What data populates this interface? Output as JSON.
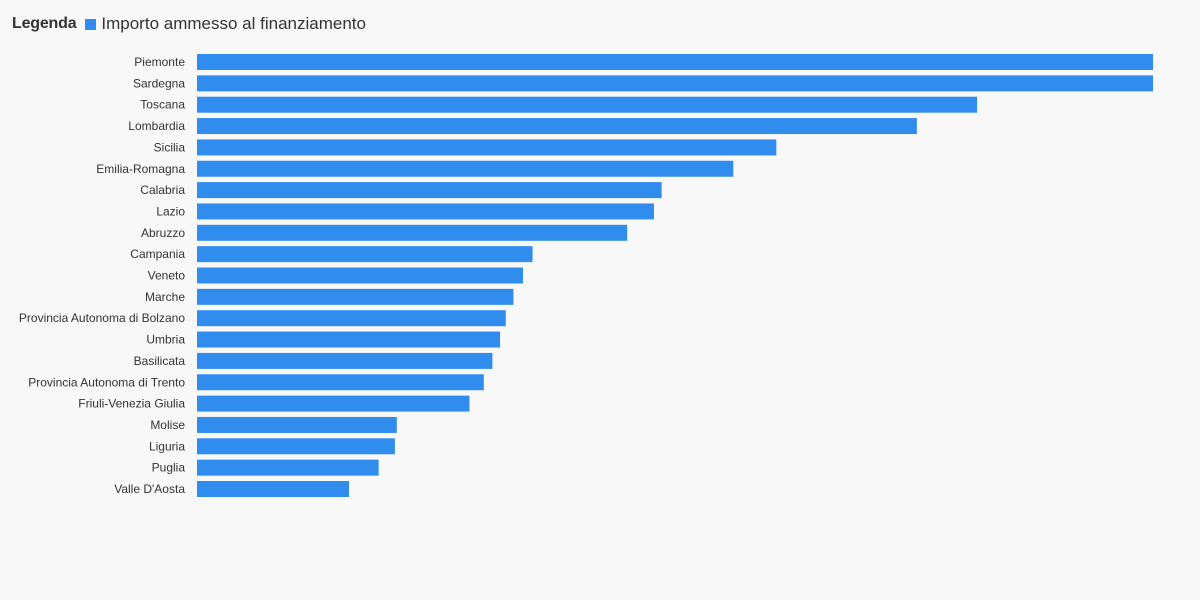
{
  "legend": {
    "title": "Legenda",
    "item_label": "Importo ammesso al finanziamento"
  },
  "colors": {
    "bar": "#318ded",
    "background": "#f8f8f8",
    "text": "#333333"
  },
  "chart_data": {
    "type": "bar",
    "orientation": "horizontal",
    "categories": [
      "Piemonte",
      "Sardegna",
      "Toscana",
      "Lombardia",
      "Sicilia",
      "Emilia-Romagna",
      "Calabria",
      "Lazio",
      "Abruzzo",
      "Campania",
      "Veneto",
      "Marche",
      "Provincia Autonoma di Bolzano",
      "Umbria",
      "Basilicata",
      "Provincia Autonoma di Trento",
      "Friuli-Venezia Giulia",
      "Molise",
      "Liguria",
      "Puglia",
      "Valle D'Aosta"
    ],
    "series": [
      {
        "name": "Importo ammesso al finanziamento",
        "values": [
          100,
          100,
          81.6,
          75.3,
          60.6,
          56.1,
          48.6,
          47.8,
          45.0,
          35.1,
          34.1,
          33.1,
          32.3,
          31.7,
          30.9,
          30.0,
          28.5,
          20.9,
          20.7,
          19.0,
          15.9
        ]
      }
    ],
    "xlim": [
      0,
      100
    ],
    "grid": false,
    "axis_ticks_visible": false,
    "legend_position": "top-left"
  }
}
